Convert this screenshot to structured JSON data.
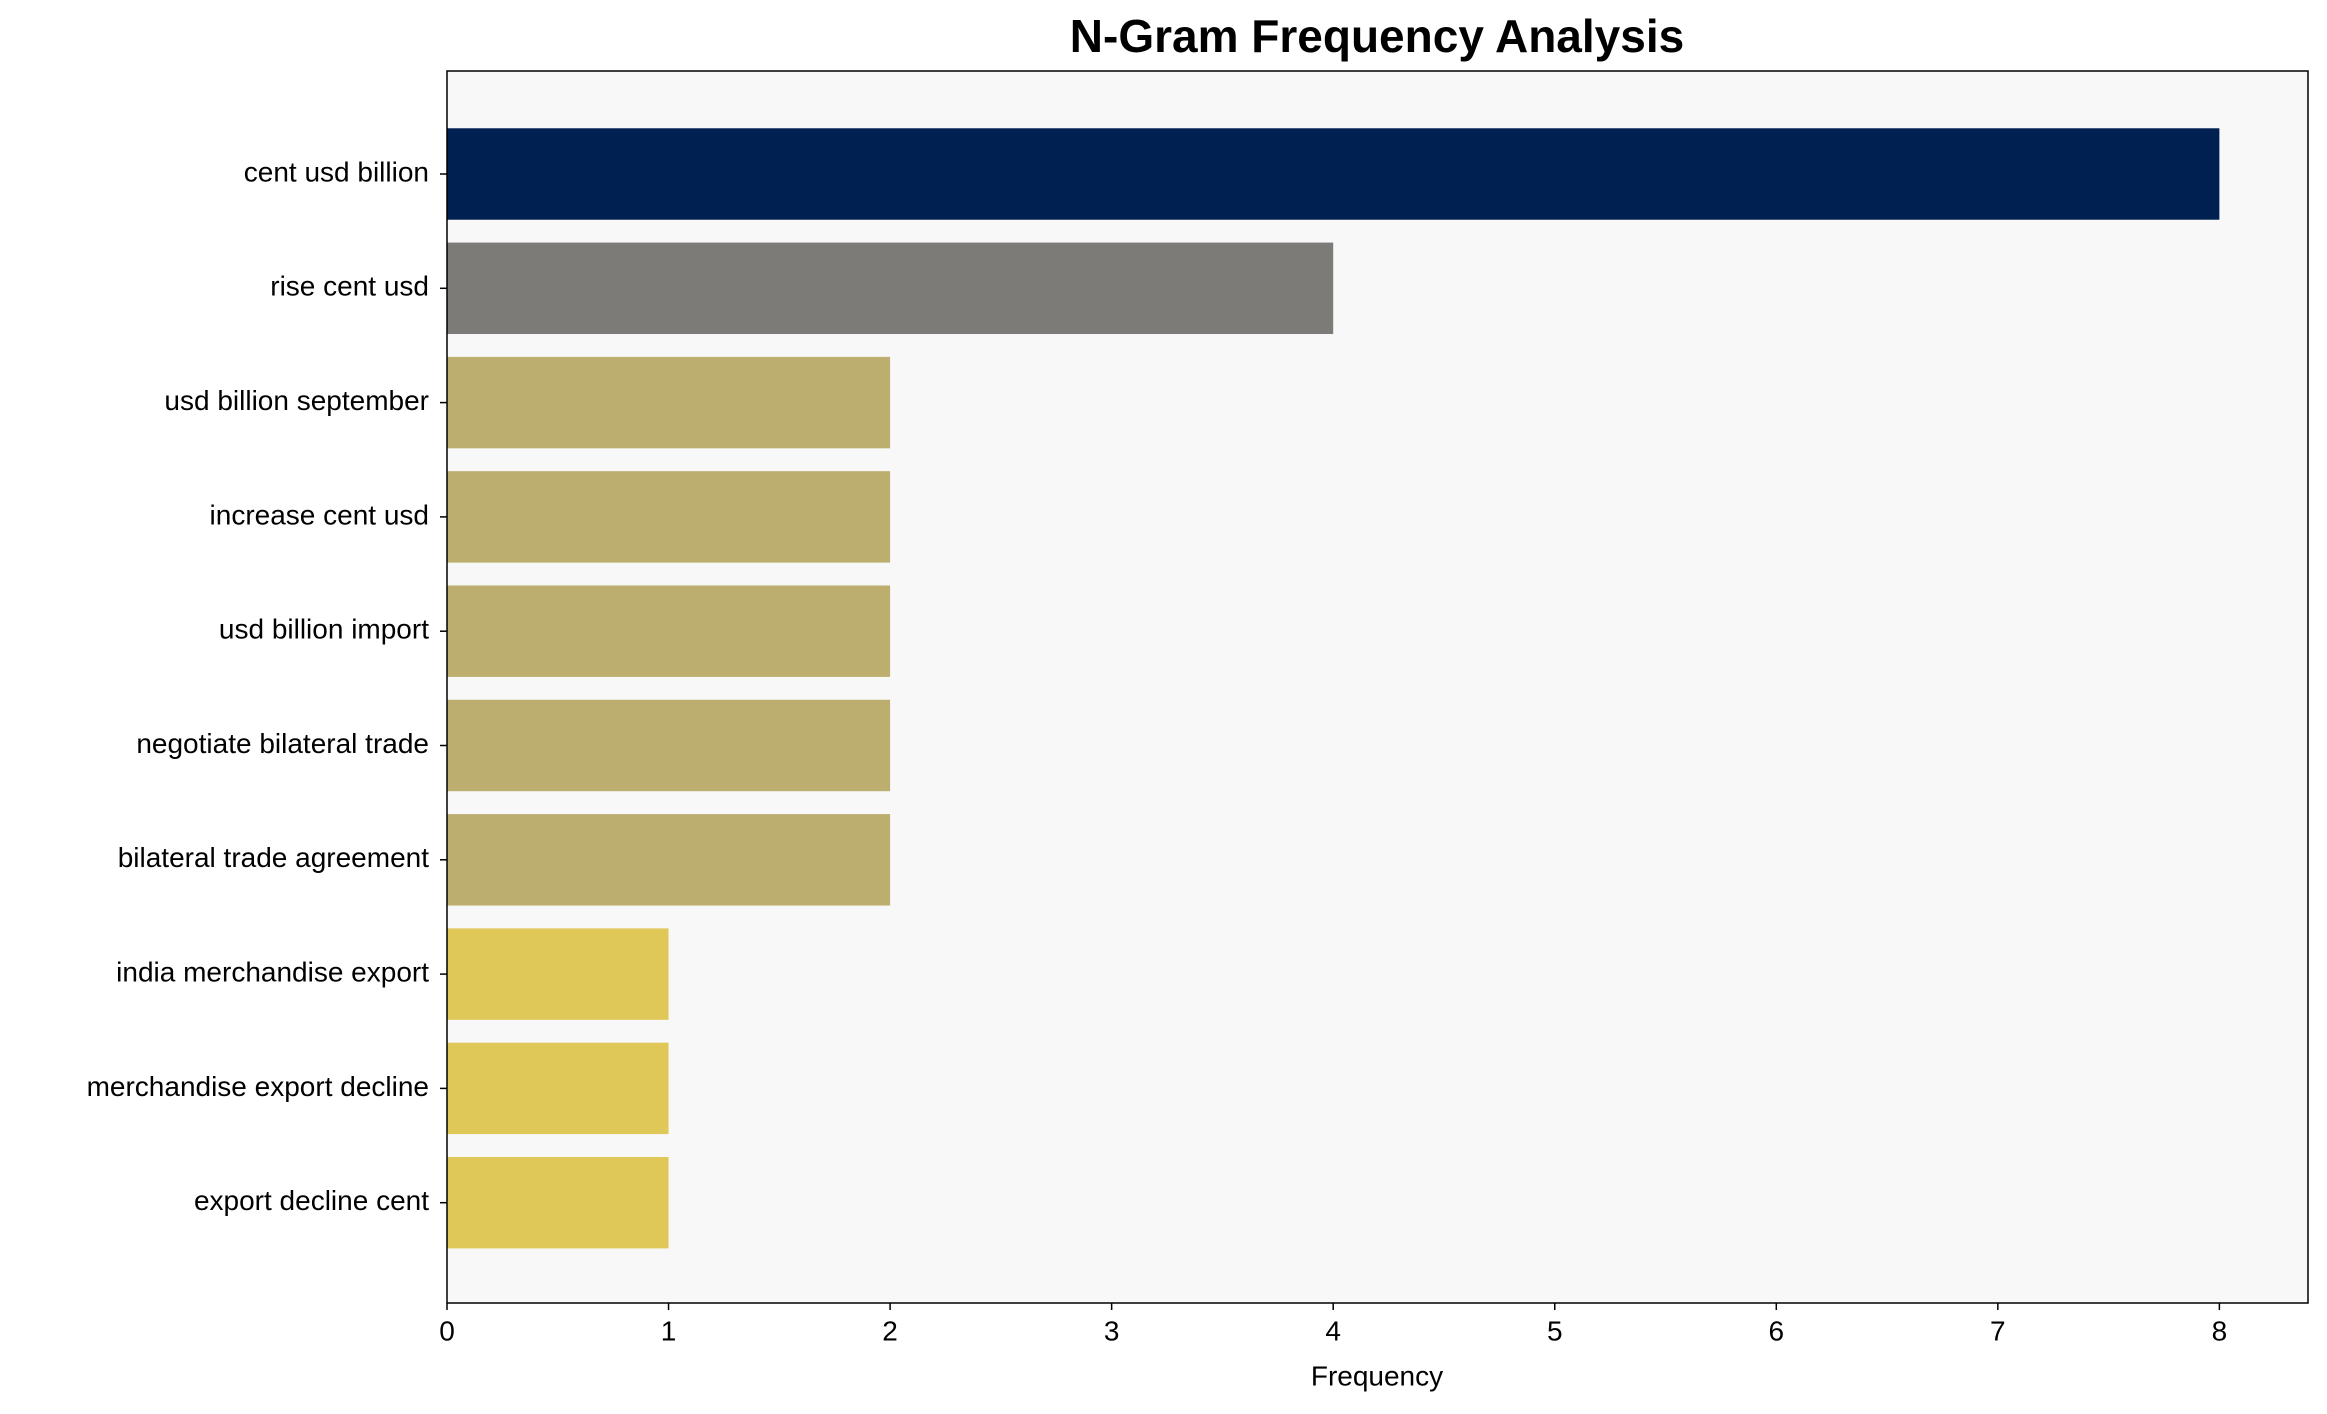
{
  "chart_data": {
    "type": "barh",
    "title": "N-Gram Frequency Analysis",
    "xlabel": "Frequency",
    "categories": [
      "cent usd billion",
      "rise cent usd",
      "usd billion september",
      "increase cent usd",
      "usd billion import",
      "negotiate bilateral trade",
      "bilateral trade agreement",
      "india merchandise export",
      "merchandise export decline",
      "export decline cent"
    ],
    "values": [
      8,
      4,
      2,
      2,
      2,
      2,
      2,
      1,
      1,
      1
    ],
    "colors": [
      "#002051",
      "#7c7b78",
      "#bcae6e",
      "#bcae6e",
      "#bcae6e",
      "#bcae6e",
      "#bcae6e",
      "#dfc857",
      "#dfc857",
      "#dfc857"
    ],
    "xlim": [
      0,
      8.4
    ],
    "xticks": [
      0,
      1,
      2,
      3,
      4,
      5,
      6,
      7,
      8
    ]
  }
}
